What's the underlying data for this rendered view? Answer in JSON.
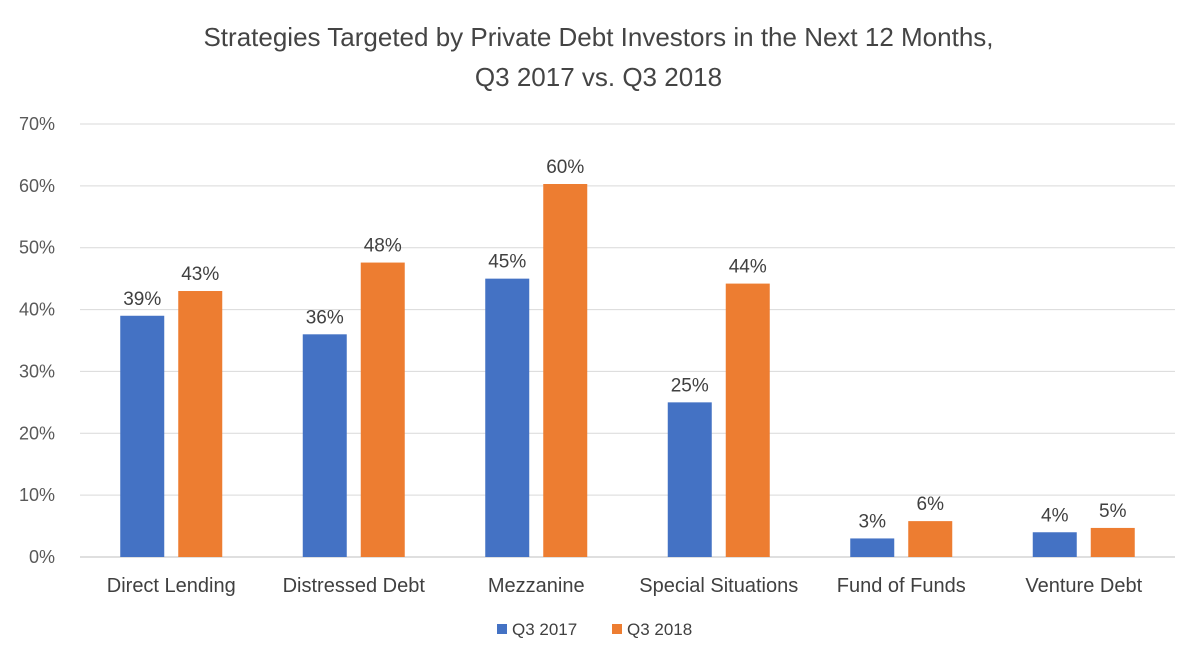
{
  "chart_data": {
    "type": "bar",
    "title": [
      "Strategies Targeted by Private Debt Investors in the Next 12 Months,",
      "Q3 2017 vs. Q3 2018"
    ],
    "xlabel": "",
    "ylabel": "",
    "ylim": [
      0,
      70
    ],
    "yticks": [
      "0%",
      "10%",
      "20%",
      "30%",
      "40%",
      "50%",
      "60%",
      "70%"
    ],
    "grid": true,
    "legend_position": "bottom",
    "categories": [
      "Direct Lending",
      "Distressed Debt",
      "Mezzanine",
      "Special Situations",
      "Fund of Funds",
      "Venture Debt"
    ],
    "series": [
      {
        "name": "Q3 2017",
        "color": "#4472C4",
        "values": [
          39,
          36,
          45,
          25,
          3,
          4
        ],
        "labels": [
          "39%",
          "36%",
          "45%",
          "25%",
          "3%",
          "4%"
        ]
      },
      {
        "name": "Q3 2018",
        "color": "#ED7D31",
        "values": [
          43,
          47.6,
          60.3,
          44.2,
          5.8,
          4.7
        ],
        "labels": [
          "43%",
          "48%",
          "60%",
          "44%",
          "6%",
          "5%"
        ]
      }
    ]
  }
}
